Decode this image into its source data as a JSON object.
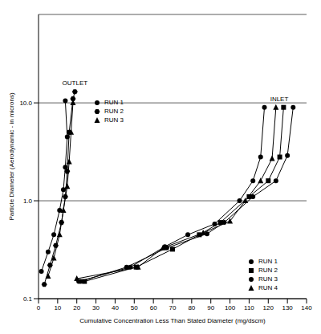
{
  "chart_data": {
    "type": "scatter",
    "x_label": "Cumulative Concentration Less Than Stated Diameter (mg/dscm)",
    "y_label": "Particle Diameter (Aerodynamic - in microns)",
    "log": "y",
    "grid": true,
    "xlim": [
      0,
      140
    ],
    "xticks": [
      0,
      10,
      20,
      30,
      40,
      50,
      60,
      70,
      80,
      90,
      100,
      110,
      120,
      130,
      140
    ],
    "ylim": [
      0.1,
      80
    ],
    "yticks": [
      {
        "value": 0.1,
        "label": "0.1"
      },
      {
        "value": 1,
        "label": "1.0"
      },
      {
        "value": 10,
        "label": "10.0"
      }
    ],
    "groups": [
      "OUTLET",
      "INLET"
    ],
    "series": [
      {
        "name": "RUN 1",
        "group": "OUTLET",
        "marker": "circle",
        "color": "#000000",
        "x": [
          1.5,
          5,
          8,
          11,
          13,
          14,
          15,
          14
        ],
        "y": [
          0.19,
          0.3,
          0.45,
          0.8,
          1.3,
          2.2,
          4.5,
          10.5
        ]
      },
      {
        "name": "RUN 2",
        "group": "OUTLET",
        "marker": "hexagon",
        "color": "#000000",
        "x": [
          3,
          6,
          9,
          12,
          14,
          15,
          16,
          18,
          19
        ],
        "y": [
          0.14,
          0.22,
          0.35,
          0.6,
          1.1,
          2,
          5,
          11,
          13
        ]
      },
      {
        "name": "RUN 3",
        "group": "OUTLET",
        "marker": "triangle",
        "color": "#000000",
        "x": [
          5,
          8,
          11,
          13,
          15,
          16,
          17,
          18
        ],
        "y": [
          0.17,
          0.26,
          0.45,
          0.8,
          1.4,
          2.5,
          5,
          10
        ]
      },
      {
        "name": "RUN 1",
        "group": "INLET",
        "marker": "circle",
        "color": "#000000",
        "x": [
          21,
          48,
          66,
          78,
          92,
          105,
          112,
          116,
          118
        ],
        "y": [
          0.15,
          0.21,
          0.34,
          0.45,
          0.58,
          1.0,
          1.6,
          2.8,
          9
        ]
      },
      {
        "name": "RUN 2",
        "group": "INLET",
        "marker": "square",
        "color": "#000000",
        "x": [
          24,
          51,
          70,
          84,
          95,
          110,
          120,
          126,
          128
        ],
        "y": [
          0.15,
          0.21,
          0.32,
          0.45,
          0.6,
          1.1,
          1.6,
          2.8,
          9
        ]
      },
      {
        "name": "RUN 3",
        "group": "INLET",
        "marker": "circle",
        "color": "#000000",
        "x": [
          22,
          46,
          67,
          88,
          97,
          112,
          124,
          130,
          133
        ],
        "y": [
          0.15,
          0.21,
          0.33,
          0.46,
          0.6,
          1.1,
          1.6,
          2.9,
          9
        ]
      },
      {
        "name": "RUN 4",
        "group": "INLET",
        "marker": "triangle",
        "color": "#000000",
        "x": [
          20,
          52,
          65,
          86,
          100,
          108,
          116,
          122,
          124
        ],
        "y": [
          0.16,
          0.21,
          0.33,
          0.47,
          0.62,
          1.0,
          1.6,
          2.7,
          9
        ]
      }
    ]
  }
}
